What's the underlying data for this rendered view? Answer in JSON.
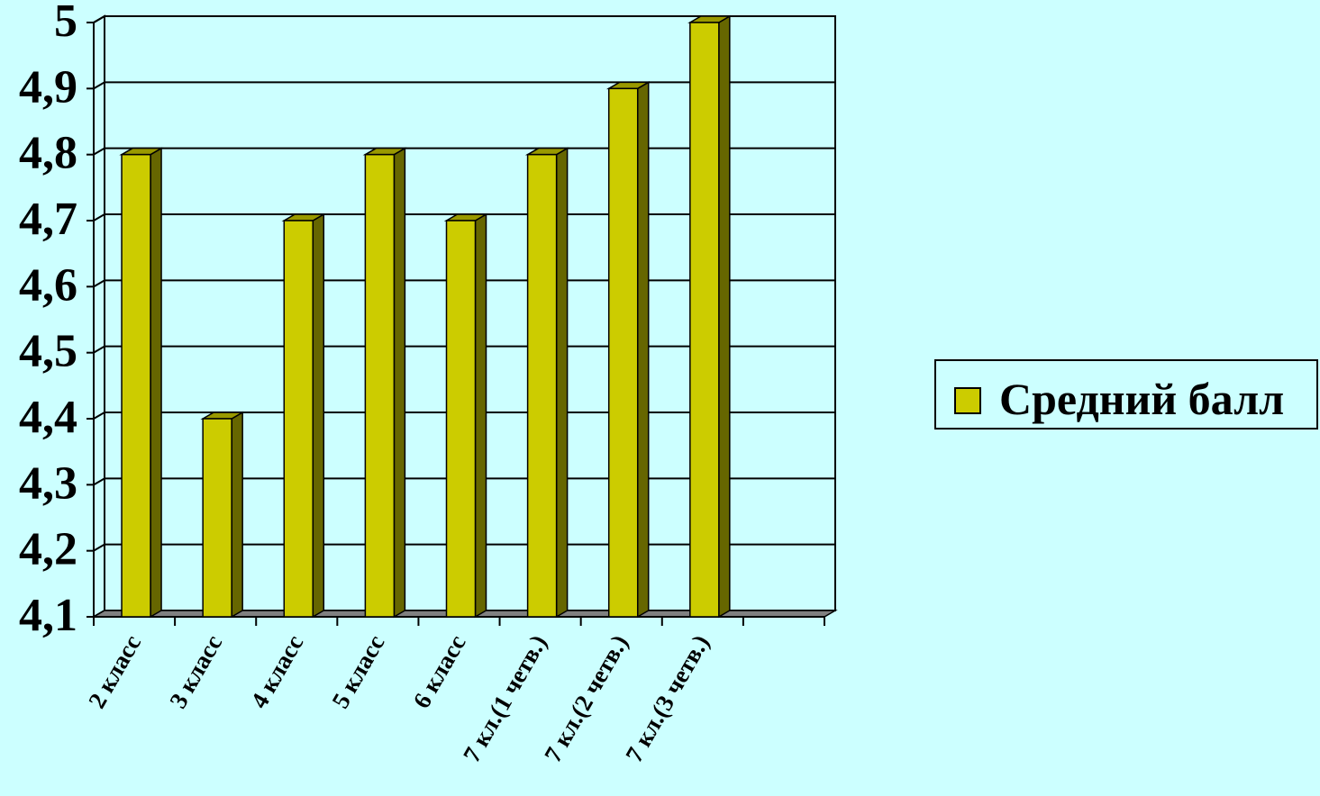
{
  "chart_data": {
    "type": "bar",
    "categories": [
      "2 класс",
      "3 класс",
      "4 класс",
      "5 класс",
      "6 класс",
      "7 кл.(1 четв.)",
      "7 кл.(2 четв.)",
      "7 кл.(3 четв.)",
      ""
    ],
    "series": [
      {
        "name": "Средний балл",
        "values": [
          4.8,
          4.4,
          4.7,
          4.8,
          4.7,
          4.8,
          4.9,
          5.0,
          null
        ]
      }
    ],
    "y_ticks": [
      "4,1",
      "4,2",
      "4,3",
      "4,4",
      "4,5",
      "4,6",
      "4,7",
      "4,8",
      "4,9",
      "5"
    ],
    "ylim": [
      4.1,
      5.0
    ],
    "grid": true,
    "legend_position": "right",
    "colors": {
      "bar": "#cccc00",
      "bar_side": "#666600",
      "floor": "#808080",
      "background": "#ccffff"
    }
  }
}
